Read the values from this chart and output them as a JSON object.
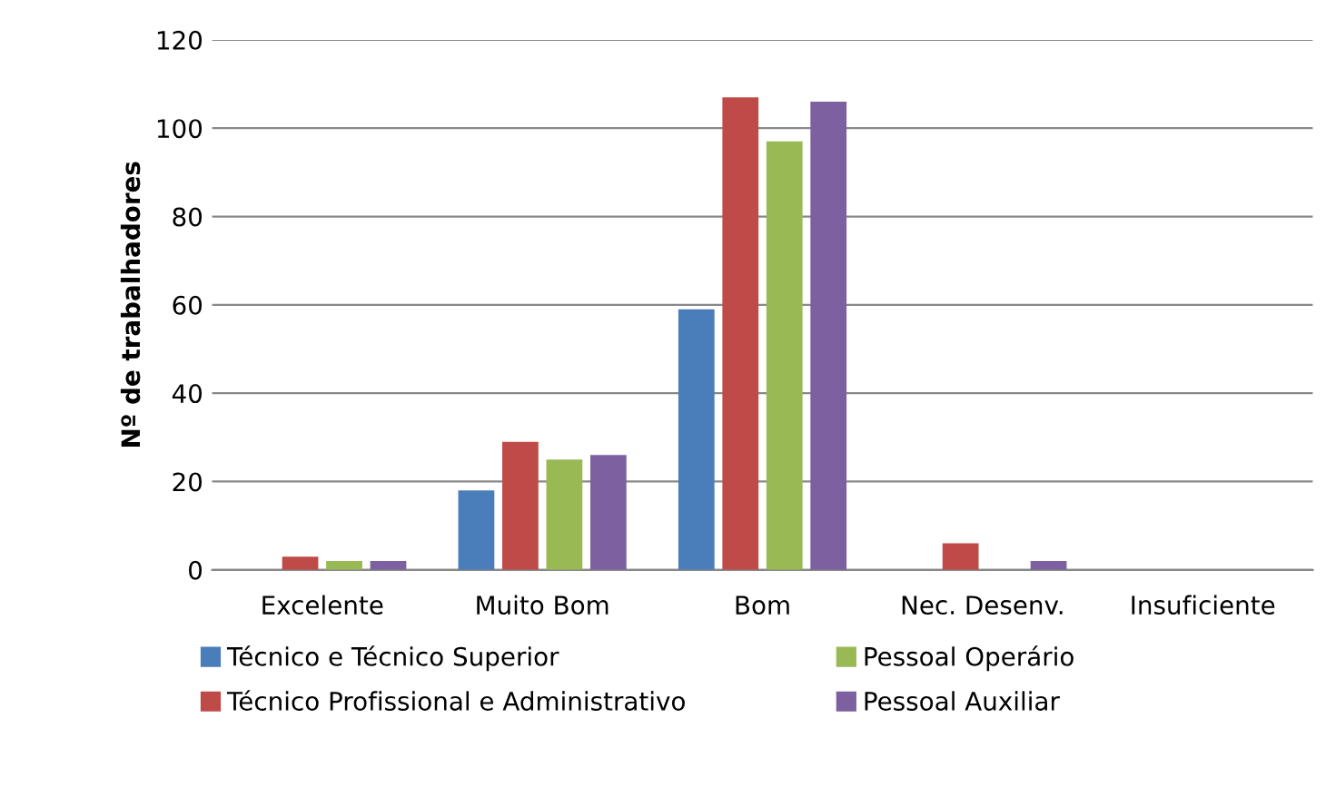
{
  "chart_data": {
    "type": "bar",
    "ylabel": "Nº de trabalhadores",
    "categories": [
      "Excelente",
      "Muito Bom",
      "Bom",
      "Nec. Desenv.",
      "Insuficiente"
    ],
    "series": [
      {
        "name": "Técnico e Técnico Superior",
        "color": "#4a7ebb",
        "values": [
          0,
          18,
          59,
          0,
          0
        ]
      },
      {
        "name": "Técnico Profissional e Administrativo",
        "color": "#be4b48",
        "values": [
          3,
          29,
          107,
          6,
          0
        ]
      },
      {
        "name": "Pessoal Operário",
        "color": "#98b954",
        "values": [
          2,
          25,
          97,
          0,
          0
        ]
      },
      {
        "name": "Pessoal Auxiliar",
        "color": "#7d60a0",
        "values": [
          2,
          26,
          106,
          2,
          0
        ]
      }
    ],
    "ylim": [
      0,
      120
    ],
    "yticks": [
      0,
      20,
      40,
      60,
      80,
      100,
      120
    ],
    "grid": "y",
    "legend": "bottom"
  }
}
